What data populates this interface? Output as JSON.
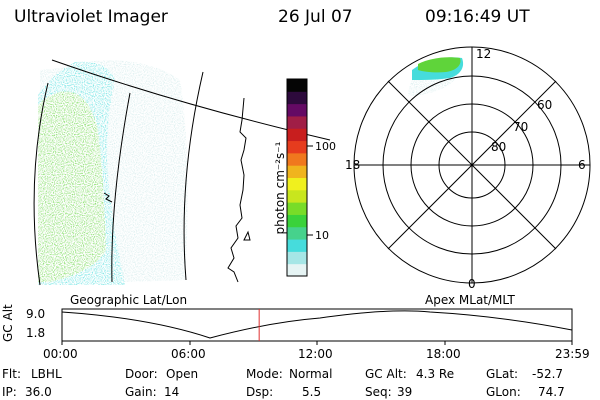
{
  "header": {
    "title": "Ultraviolet Imager",
    "date": "26 Jul 07",
    "time": "09:16:49 UT"
  },
  "colors": {
    "aurora_green": "#5fd43a",
    "aurora_cyan": "#46dcdc",
    "aurora_pale": "#cfe9e9",
    "timeline_marker": "#e03030"
  },
  "colorbar": {
    "label": "photon cm⁻²s⁻¹",
    "ticks": [
      {
        "label": "100",
        "value": 100
      },
      {
        "label": "10",
        "value": 10
      }
    ],
    "stops": [
      "#e6f4f4",
      "#a6e6e6",
      "#46dcdc",
      "#46d28c",
      "#3ad23a",
      "#78dc28",
      "#c8e61e",
      "#f0f01e",
      "#f0b41e",
      "#f0781e",
      "#e63c1e",
      "#c81e1e",
      "#a01e46",
      "#640a64",
      "#2d0a3c",
      "#050505"
    ]
  },
  "left_map": {
    "label": "Geographic Lat/Lon"
  },
  "polar_plot": {
    "label": "Apex MLat/MLT",
    "lat_labels": [
      "60",
      "70",
      "80"
    ],
    "mlt_labels": {
      "top": "12",
      "left": "18",
      "right": "6",
      "bottom": "0"
    }
  },
  "timeline": {
    "ylabel": "GC Alt",
    "y_ticks": [
      "9.0",
      "1.8"
    ],
    "x_ticks": [
      "00:00",
      "06:00",
      "12:00",
      "18:00",
      "23:59"
    ],
    "current_fraction": 0.3866
  },
  "footer": {
    "row1": [
      {
        "label": "Flt:",
        "value": "LBHL"
      },
      {
        "label": "Door:",
        "value": "Open"
      },
      {
        "label": "Mode:",
        "value": "Normal"
      },
      {
        "label": "GC Alt:",
        "value": "4.3 Re"
      },
      {
        "label": "GLat:",
        "value": "-52.7"
      }
    ],
    "row2": [
      {
        "label": "IP:",
        "value": "36.0"
      },
      {
        "label": "Gain:",
        "value": "14"
      },
      {
        "label": "Dsp:",
        "value": "5.5"
      },
      {
        "label": "Seq:",
        "value": "39"
      },
      {
        "label": "GLon:",
        "value": "74.7"
      }
    ]
  }
}
